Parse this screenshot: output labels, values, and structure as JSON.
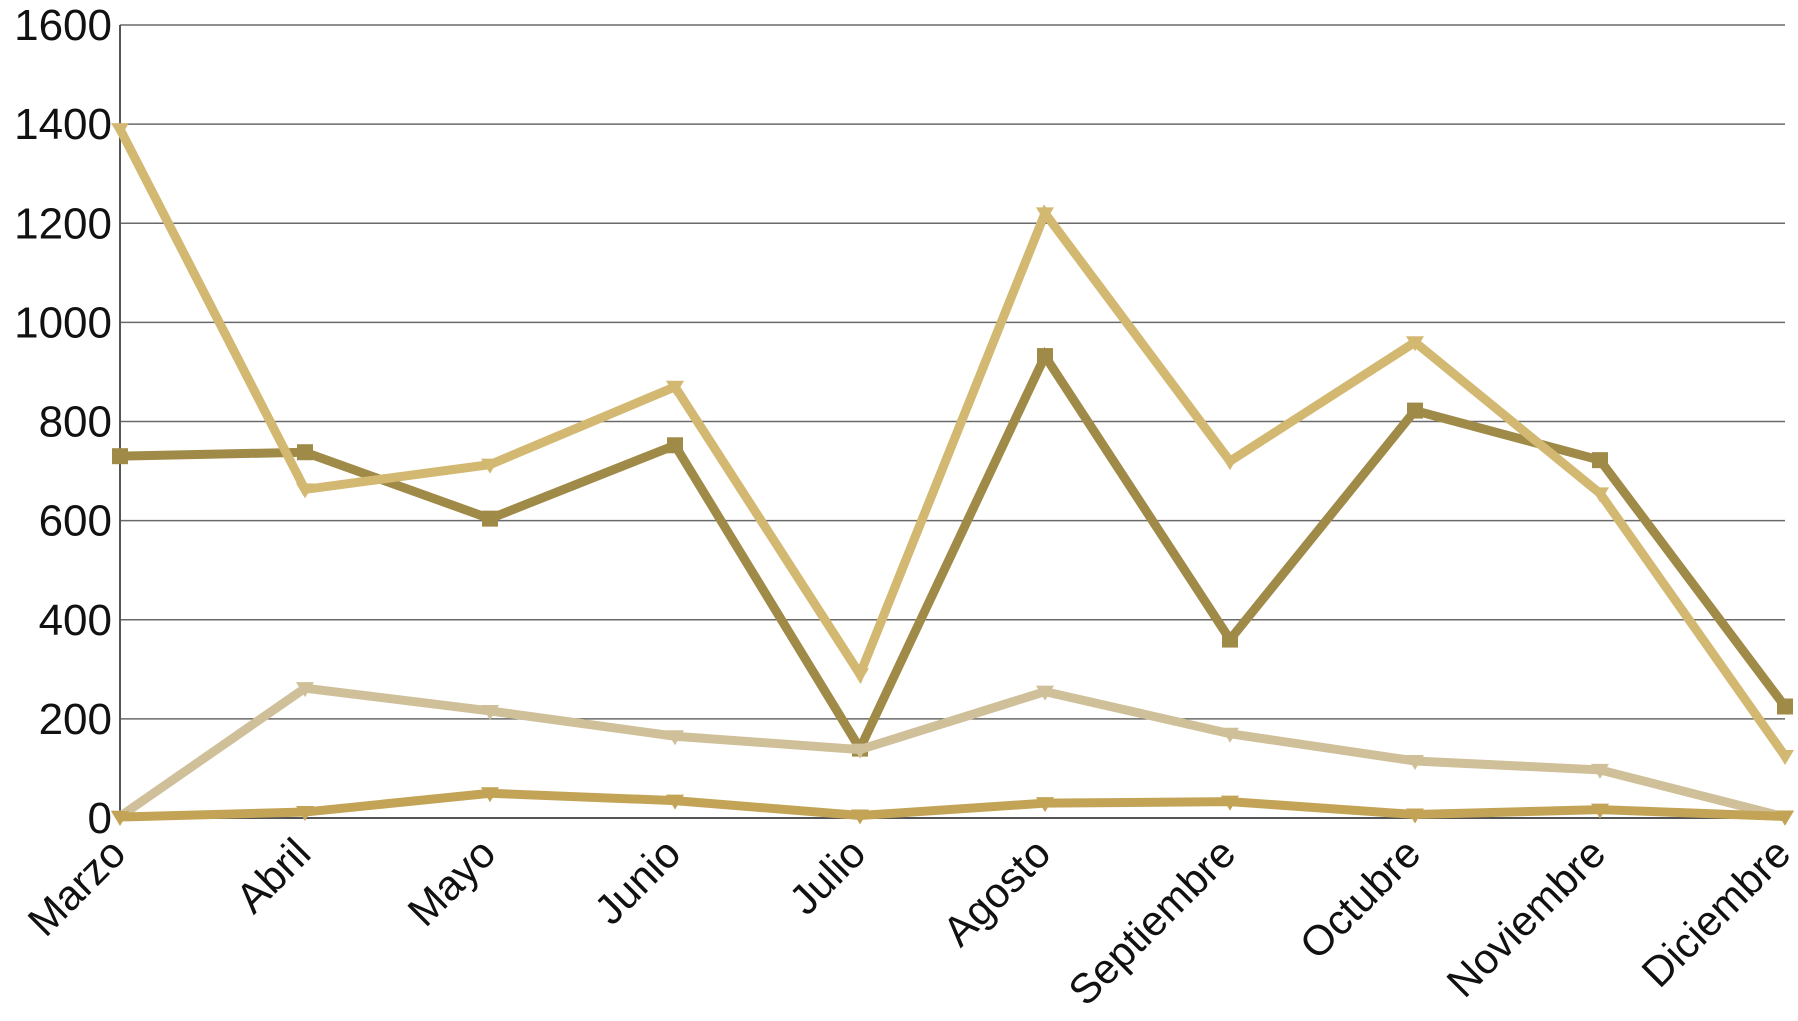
{
  "chart_data": {
    "type": "line",
    "categories": [
      "Marzo",
      "Abril",
      "Mayo",
      "Junio",
      "Julio",
      "Agosto",
      "Septiembre",
      "Octubre",
      "Noviembre",
      "Diciembre"
    ],
    "ylim": [
      0,
      1600
    ],
    "yticks": [
      0,
      200,
      400,
      600,
      800,
      1000,
      1200,
      1400,
      1600
    ],
    "grid": true,
    "legend": "none",
    "series": [
      {
        "color": "#a08a47",
        "marker": "square",
        "values": [
          730,
          738,
          604,
          752,
          140,
          932,
          360,
          822,
          722,
          225
        ]
      },
      {
        "color": "#d2b871",
        "marker": "triangle-down",
        "values": [
          1390,
          663,
          713,
          870,
          290,
          1220,
          720,
          960,
          655,
          125
        ]
      },
      {
        "color": "#cfc09a",
        "marker": "triangle-down",
        "values": [
          3,
          262,
          216,
          165,
          138,
          255,
          170,
          115,
          97,
          2
        ]
      },
      {
        "color": "#c3a457",
        "marker": "triangle-down",
        "values": [
          2,
          12,
          50,
          35,
          5,
          30,
          33,
          7,
          17,
          3
        ]
      }
    ]
  }
}
